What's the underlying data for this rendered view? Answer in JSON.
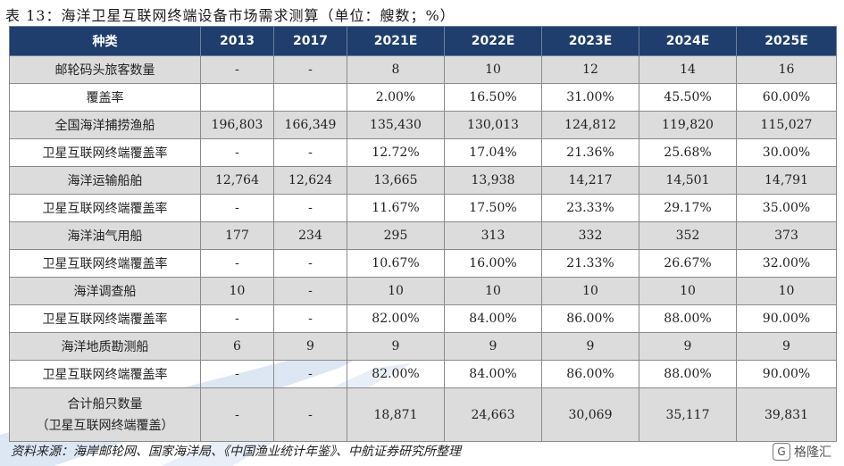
{
  "title": "表 13：海洋卫星互联网终端设备市场需求测算（单位：艘数；%）",
  "table": {
    "headers": [
      "种类",
      "2013",
      "2017",
      "2021E",
      "2022E",
      "2023E",
      "2024E",
      "2025E"
    ],
    "rows": [
      [
        "邮轮码头旅客数量",
        "-",
        "-",
        "8",
        "10",
        "12",
        "14",
        "16"
      ],
      [
        "覆盖率",
        "",
        "",
        "2.00%",
        "16.50%",
        "31.00%",
        "45.50%",
        "60.00%"
      ],
      [
        "全国海洋捕捞渔船",
        "196,803",
        "166,349",
        "135,430",
        "130,013",
        "124,812",
        "119,820",
        "115,027"
      ],
      [
        "卫星互联网终端覆盖率",
        "-",
        "-",
        "12.72%",
        "17.04%",
        "21.36%",
        "25.68%",
        "30.00%"
      ],
      [
        "海洋运输船舶",
        "12,764",
        "12,624",
        "13,665",
        "13,938",
        "14,217",
        "14,501",
        "14,791"
      ],
      [
        "卫星互联网终端覆盖率",
        "-",
        "-",
        "11.67%",
        "17.50%",
        "23.33%",
        "29.17%",
        "35.00%"
      ],
      [
        "海洋油气用船",
        "177",
        "234",
        "295",
        "313",
        "332",
        "352",
        "373"
      ],
      [
        "卫星互联网终端覆盖率",
        "-",
        "-",
        "10.67%",
        "16.00%",
        "21.33%",
        "26.67%",
        "32.00%"
      ],
      [
        "海洋调查船",
        "10",
        "-",
        "10",
        "10",
        "10",
        "10",
        "10"
      ],
      [
        "卫星互联网终端覆盖率",
        "-",
        "-",
        "82.00%",
        "84.00%",
        "86.00%",
        "88.00%",
        "90.00%"
      ],
      [
        "海洋地质勘测船",
        "6",
        "9",
        "9",
        "9",
        "9",
        "9",
        "9"
      ],
      [
        "卫星互联网终端覆盖率",
        "-",
        "-",
        "82.00%",
        "84.00%",
        "86.00%",
        "88.00%",
        "90.00%"
      ]
    ],
    "total_row": {
      "label_line1": "合计船只数量",
      "label_line2": "（卫星互联网终端覆盖）",
      "values": [
        "-",
        "-",
        "18,871",
        "24,663",
        "30,069",
        "35,117",
        "39,831"
      ]
    }
  },
  "source": "资料来源：海岸邮轮网、国家海洋局、《中国渔业统计年鉴》、中航证券研究所整理",
  "logo_text": "格隆汇",
  "colors": {
    "header_bg": "#1f3e6d",
    "shade_bg": "#dcdcdc",
    "watermark": "#dbe6f2"
  }
}
